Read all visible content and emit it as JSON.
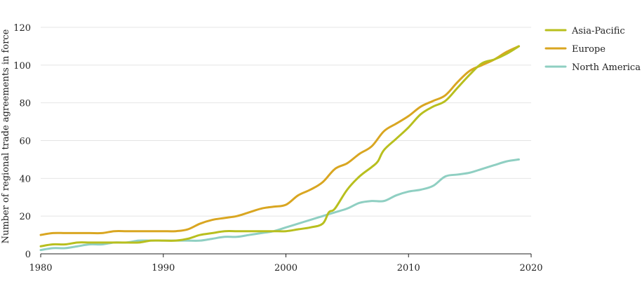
{
  "chart_data": {
    "type": "line",
    "ylabel": "Number of regional trade agreements in force",
    "xlabel": "",
    "xlim": [
      1980,
      2020
    ],
    "ylim": [
      0,
      120
    ],
    "x_ticks": [
      1980,
      1990,
      2000,
      2010,
      2020
    ],
    "y_ticks": [
      0,
      20,
      40,
      60,
      80,
      100,
      120
    ],
    "grid": "horizontal",
    "legend_position": "top-right",
    "series": [
      {
        "name": "Asia-Pacific",
        "color": "#b8bf1e",
        "x": [
          1980,
          1981,
          1982,
          1983,
          1984,
          1985,
          1986,
          1987,
          1988,
          1989,
          1990,
          1991,
          1992,
          1993,
          1994,
          1995,
          1996,
          1997,
          1998,
          1999,
          2000,
          2001,
          2002,
          2003,
          2003.5,
          2004,
          2005,
          2006,
          2007,
          2007.5,
          2008,
          2009,
          2010,
          2011,
          2012,
          2013,
          2014,
          2015,
          2016,
          2017,
          2018,
          2019
        ],
        "y": [
          4,
          5,
          5,
          6,
          6,
          6,
          6,
          6,
          6,
          7,
          7,
          7,
          8,
          10,
          11,
          12,
          12,
          12,
          12,
          12,
          12,
          13,
          14,
          16,
          22,
          24,
          34,
          41,
          46,
          49,
          55,
          61,
          67,
          74,
          78,
          81,
          88,
          95,
          101,
          103,
          106,
          110
        ]
      },
      {
        "name": "Europe",
        "color": "#d9a621",
        "x": [
          1980,
          1981,
          1982,
          1983,
          1984,
          1985,
          1986,
          1987,
          1988,
          1989,
          1990,
          1991,
          1992,
          1993,
          1994,
          1995,
          1996,
          1997,
          1998,
          1999,
          2000,
          2001,
          2002,
          2003,
          2004,
          2005,
          2006,
          2007,
          2008,
          2009,
          2010,
          2011,
          2012,
          2013,
          2014,
          2015,
          2016,
          2017,
          2018,
          2019
        ],
        "y": [
          10,
          11,
          11,
          11,
          11,
          11,
          12,
          12,
          12,
          12,
          12,
          12,
          13,
          16,
          18,
          19,
          20,
          22,
          24,
          25,
          26,
          31,
          34,
          38,
          45,
          48,
          53,
          57,
          65,
          69,
          73,
          78,
          81,
          84,
          91,
          97,
          100,
          103,
          107,
          110
        ]
      },
      {
        "name": "North America",
        "color": "#8fcfc2",
        "x": [
          1980,
          1981,
          1982,
          1983,
          1984,
          1985,
          1986,
          1987,
          1988,
          1989,
          1990,
          1991,
          1992,
          1993,
          1994,
          1995,
          1996,
          1997,
          1998,
          1999,
          2000,
          2001,
          2002,
          2003,
          2004,
          2005,
          2006,
          2007,
          2008,
          2009,
          2010,
          2011,
          2012,
          2013,
          2014,
          2015,
          2016,
          2017,
          2018,
          2019
        ],
        "y": [
          2,
          3,
          3,
          4,
          5,
          5,
          6,
          6,
          7,
          7,
          7,
          7,
          7,
          7,
          8,
          9,
          9,
          10,
          11,
          12,
          14,
          16,
          18,
          20,
          22,
          24,
          27,
          28,
          28,
          31,
          33,
          34,
          36,
          41,
          42,
          43,
          45,
          47,
          49,
          50
        ]
      }
    ]
  }
}
